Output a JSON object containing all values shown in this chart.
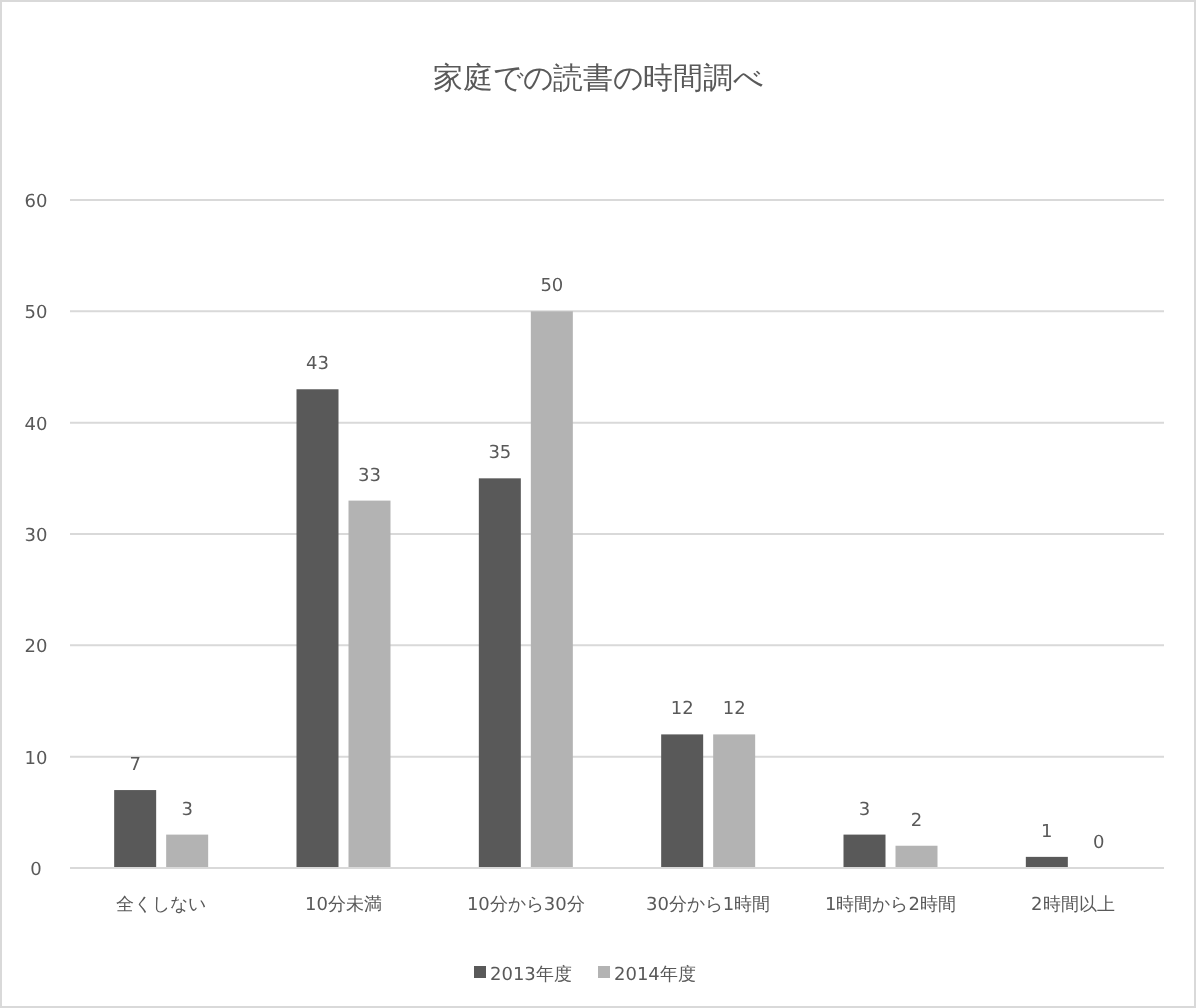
{
  "chart_data": {
    "type": "bar",
    "title": "家庭での読書の時間調べ",
    "categories": [
      "全くしない",
      "10分未満",
      "10分から30分",
      "30分から1時間",
      "1時間から2時間",
      "2時間以上"
    ],
    "series": [
      {
        "name": "2013年度",
        "color": "#595959",
        "values": [
          7,
          43,
          35,
          12,
          3,
          1
        ]
      },
      {
        "name": "2014年度",
        "color": "#b3b3b3",
        "values": [
          3,
          33,
          50,
          12,
          2,
          0
        ]
      }
    ],
    "ylim": [
      0,
      60
    ],
    "yticks": [
      0,
      10,
      20,
      30,
      40,
      50,
      60
    ],
    "grid": "y",
    "legend": "bottom",
    "data_labels": true
  }
}
